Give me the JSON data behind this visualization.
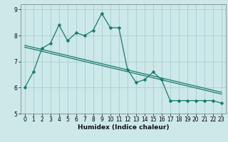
{
  "title": "",
  "xlabel": "Humidex (Indice chaleur)",
  "ylabel": "",
  "bg_color": "#cce8e8",
  "grid_color": "#aacece",
  "line_color": "#1a7a6e",
  "xlim": [
    -0.5,
    23.5
  ],
  "ylim": [
    5,
    9.2
  ],
  "xticks": [
    0,
    1,
    2,
    3,
    4,
    5,
    6,
    7,
    8,
    9,
    10,
    11,
    12,
    13,
    14,
    15,
    16,
    17,
    18,
    19,
    20,
    21,
    22,
    23
  ],
  "yticks": [
    5,
    6,
    7,
    8,
    9
  ],
  "curve_x": [
    0,
    1,
    2,
    3,
    4,
    5,
    6,
    7,
    8,
    9,
    10,
    11,
    12,
    13,
    14,
    15,
    16,
    17,
    18,
    19,
    20,
    21,
    22,
    23
  ],
  "curve_y": [
    6.0,
    6.6,
    7.5,
    7.7,
    8.4,
    7.8,
    8.1,
    8.0,
    8.2,
    8.85,
    8.3,
    8.3,
    6.7,
    6.2,
    6.3,
    6.6,
    6.3,
    5.5,
    5.5,
    5.5,
    5.5,
    5.5,
    5.5,
    5.4
  ],
  "reg_line_x": [
    0,
    23
  ],
  "reg_line_y": [
    7.62,
    5.82
  ],
  "reg_line2_x": [
    0,
    23
  ],
  "reg_line2_y": [
    7.55,
    5.75
  ],
  "xlabel_fontsize": 6.5,
  "tick_fontsize": 5.5
}
